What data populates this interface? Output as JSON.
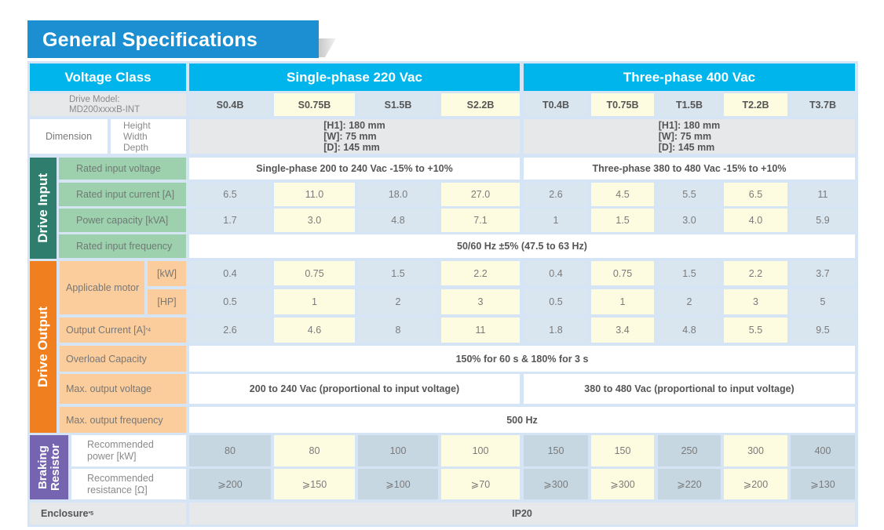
{
  "title": "General Specifications",
  "header": {
    "voltage_class_label": "Voltage Class",
    "group_single": "Single-phase 220 Vac",
    "group_three": "Three-phase 400 Vac",
    "drive_model_label": "Drive Model:\nMD200xxxxB-INT",
    "models": [
      "S0.4B",
      "S0.75B",
      "S1.5B",
      "S2.2B",
      "T0.4B",
      "T0.75B",
      "T1.5B",
      "T2.2B",
      "T3.7B"
    ]
  },
  "dimension": {
    "label": "Dimension",
    "sub_labels": "Height\nWidth\nDepth",
    "single": "[H1]: 180 mm\n[W]: 75 mm\n[D]: 145 mm",
    "three": "[H1]: 180 mm\n[W]: 75 mm\n[D]: 145 mm"
  },
  "drive_input": {
    "section_label": "Drive Input",
    "rated_input_voltage": {
      "label": "Rated input voltage",
      "single": "Single-phase 200 to 240 Vac -15% to +10%",
      "three": "Three-phase 380 to 480 Vac -15% to +10%"
    },
    "rated_input_current": {
      "label": "Rated input current [A]",
      "values": [
        "6.5",
        "11.0",
        "18.0",
        "27.0",
        "2.6",
        "4.5",
        "5.5",
        "6.5",
        "11"
      ]
    },
    "power_capacity": {
      "label": "Power capacity [kVA]",
      "values": [
        "1.7",
        "3.0",
        "4.8",
        "7.1",
        "1",
        "1.5",
        "3.0",
        "4.0",
        "5.9"
      ]
    },
    "rated_input_frequency": {
      "label": "Rated input frequency",
      "value": "50/60 Hz ±5% (47.5 to 63 Hz)"
    }
  },
  "drive_output": {
    "section_label": "Drive Output",
    "applicable_motor": {
      "label": "Applicable motor",
      "kw_unit": "[kW]",
      "hp_unit": "[HP]",
      "kw_values": [
        "0.4",
        "0.75",
        "1.5",
        "2.2",
        "0.4",
        "0.75",
        "1.5",
        "2.2",
        "3.7"
      ],
      "hp_values": [
        "0.5",
        "1",
        "2",
        "3",
        "0.5",
        "1",
        "2",
        "3",
        "5"
      ]
    },
    "output_current": {
      "label": "Output Current [A]",
      "note": "*4",
      "values": [
        "2.6",
        "4.6",
        "8",
        "11",
        "1.8",
        "3.4",
        "4.8",
        "5.5",
        "9.5"
      ]
    },
    "overload_capacity": {
      "label": "Overload Capacity",
      "value": "150% for 60 s & 180% for 3 s"
    },
    "max_output_voltage": {
      "label": "Max. output voltage",
      "single": "200 to 240 Vac (proportional to input voltage)",
      "three": "380 to 480 Vac (proportional to input voltage)"
    },
    "max_output_frequency": {
      "label": "Max. output frequency",
      "value": "500 Hz"
    }
  },
  "braking_resistor": {
    "section_label_1": "Braking",
    "section_label_2": "Resistor",
    "power": {
      "label": "Recommended\npower [kW]",
      "values": [
        "80",
        "80",
        "100",
        "100",
        "150",
        "150",
        "250",
        "300",
        "400"
      ]
    },
    "resistance": {
      "label": "Recommended\nresistance [Ω]",
      "values": [
        "⩾200",
        "⩾150",
        "⩾100",
        "⩾70",
        "⩾300",
        "⩾300",
        "⩾220",
        "⩾200",
        "⩾130"
      ]
    }
  },
  "enclosure": {
    "label": "Enclosure",
    "note": "*5",
    "value": "IP20"
  }
}
